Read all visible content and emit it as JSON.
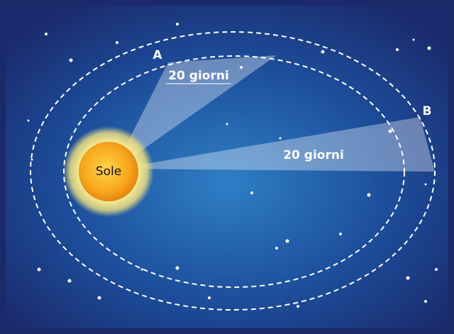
{
  "labels": {
    "sun": "Sole",
    "point_a": "A",
    "point_b": "B",
    "sector_a": "20 giorni",
    "sector_b": "20 giorni"
  }
}
